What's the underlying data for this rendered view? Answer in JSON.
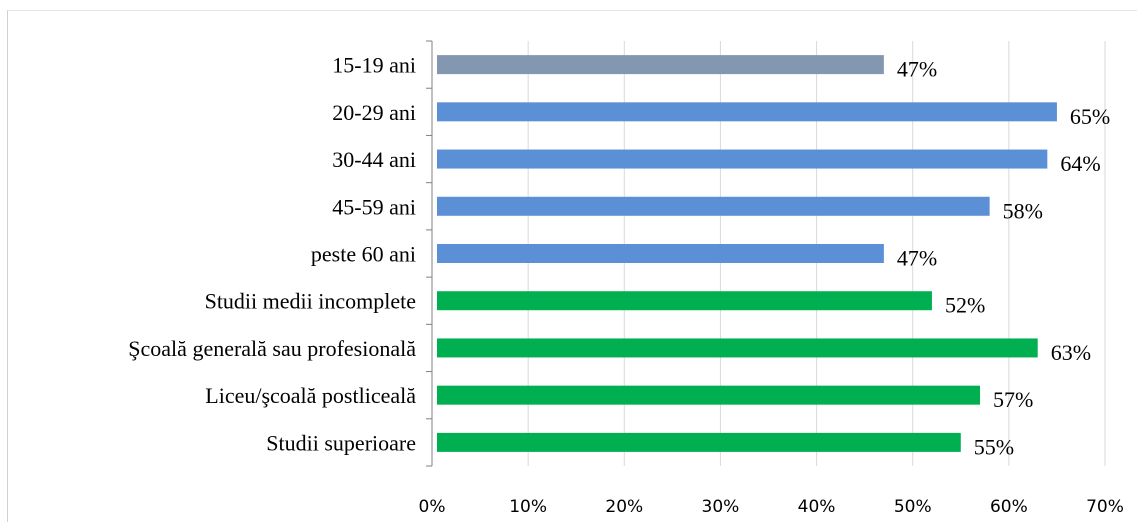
{
  "chart_data": {
    "type": "bar",
    "orientation": "horizontal",
    "categories": [
      "15-19 ani",
      "20-29 ani",
      "30-44 ani",
      "45-59 ani",
      "peste 60 ani",
      "Studii medii incomplete",
      "Şcoală generală sau profesională",
      "Liceu/şcoală postliceală",
      "Studii superioare"
    ],
    "values": [
      47,
      65,
      64,
      58,
      47,
      52,
      63,
      57,
      55
    ],
    "data_labels": [
      "47%",
      "65%",
      "64%",
      "58%",
      "47%",
      "52%",
      "63%",
      "57%",
      "55%"
    ],
    "bar_colors": [
      "#8497b0",
      "#5b8fd6",
      "#5b8fd6",
      "#5b8fd6",
      "#5b8fd6",
      "#00b050",
      "#00b050",
      "#00b050",
      "#00b050"
    ],
    "x_ticks": [
      "0%",
      "10%",
      "20%",
      "30%",
      "40%",
      "50%",
      "60%",
      "70%"
    ],
    "xlim": [
      0,
      70
    ],
    "title": "",
    "xlabel": "",
    "ylabel": "",
    "grid": true,
    "legend": false
  }
}
